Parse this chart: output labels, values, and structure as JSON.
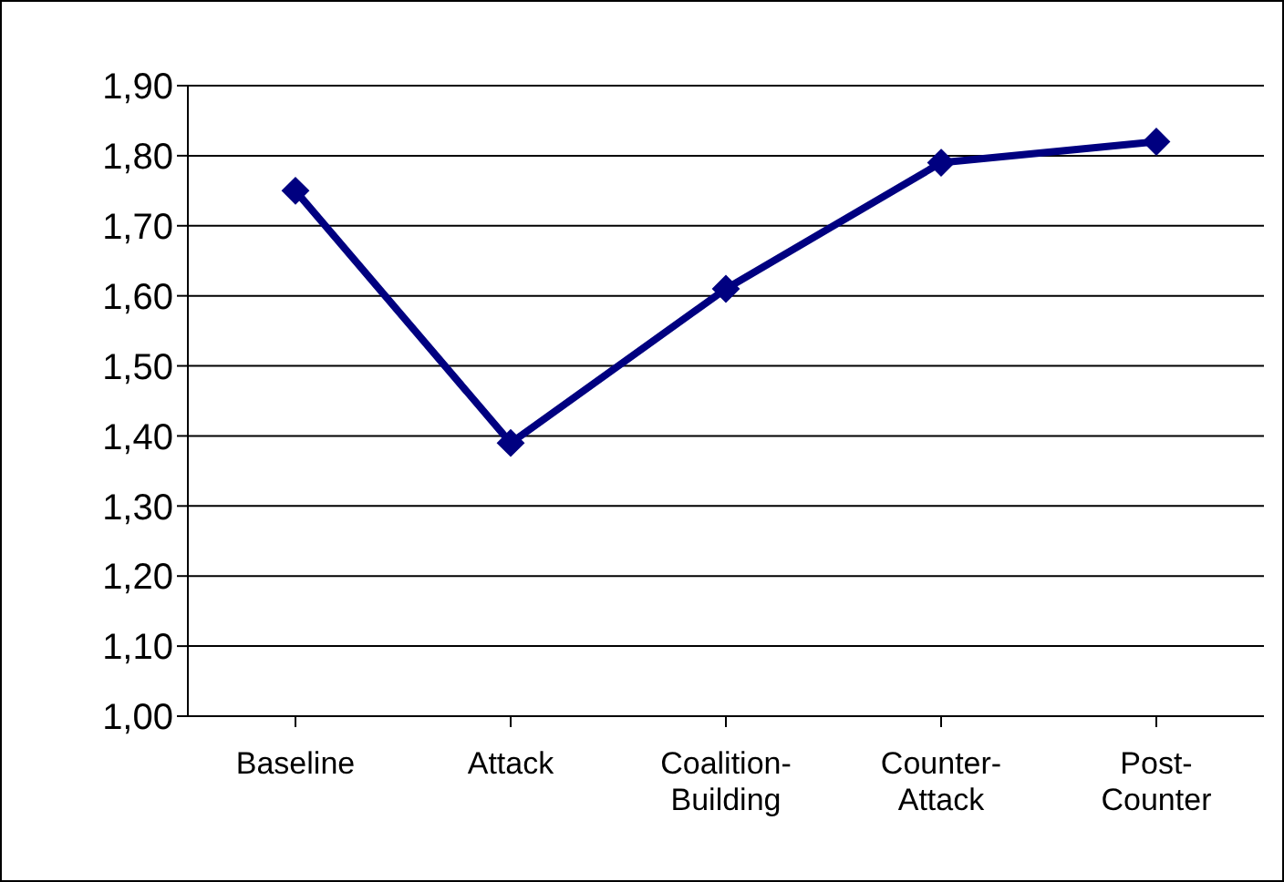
{
  "chart_data": {
    "type": "line",
    "categories": [
      "Baseline",
      "Attack",
      "Coalition-Building",
      "Counter-Attack",
      "Post-Counter"
    ],
    "series": [
      {
        "color": "#000080",
        "values": [
          1.75,
          1.39,
          1.61,
          1.79,
          1.82
        ]
      }
    ],
    "ylim": [
      1,
      1.9
    ],
    "yticks": [
      {
        "value": 1,
        "label": "1,00"
      },
      {
        "value": 1.1,
        "label": "1,10"
      },
      {
        "value": 1.2,
        "label": "1,20"
      },
      {
        "value": 1.3,
        "label": "1,30"
      },
      {
        "value": 1.4,
        "label": "1,40"
      },
      {
        "value": 1.5,
        "label": "1,50"
      },
      {
        "value": 1.6,
        "label": "1,60"
      },
      {
        "value": 1.7,
        "label": "1,70"
      },
      {
        "value": 1.8,
        "label": "1,80"
      },
      {
        "value": 1.9,
        "label": "1,90"
      }
    ],
    "grid": "y",
    "legend": false,
    "marker": "diamond",
    "line_style": "solid"
  }
}
